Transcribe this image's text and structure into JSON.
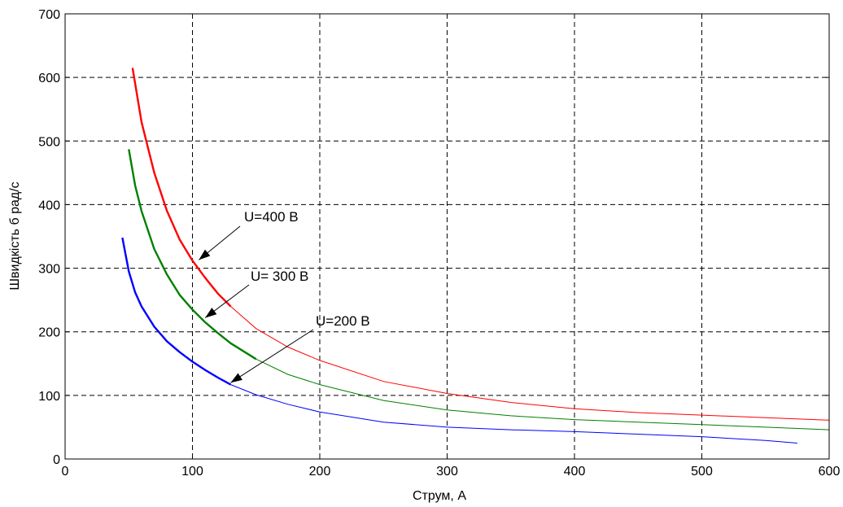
{
  "chart_data": {
    "type": "line",
    "xlabel": "Струм, А",
    "ylabel": "Швидкість б рад/с",
    "xlim": [
      0,
      600
    ],
    "ylim": [
      0,
      700
    ],
    "xticks": [
      "0",
      "100",
      "200",
      "300",
      "400",
      "500",
      "600"
    ],
    "yticks": [
      "0",
      "100",
      "200",
      "300",
      "400",
      "500",
      "600",
      "700"
    ],
    "grid": true,
    "series": [
      {
        "name": "U=400 В",
        "color": "#ff0000",
        "x": [
          53,
          60,
          70,
          80,
          90,
          100,
          110,
          120,
          130,
          150,
          175,
          200,
          250,
          300,
          350,
          400,
          450,
          500,
          550,
          600
        ],
        "y": [
          615,
          530,
          450,
          390,
          345,
          312,
          285,
          260,
          240,
          205,
          176,
          155,
          122,
          103,
          89,
          79,
          73,
          69,
          65,
          61
        ]
      },
      {
        "name": "U= 300 В",
        "color": "#008000",
        "x": [
          50,
          55,
          60,
          70,
          80,
          90,
          100,
          110,
          120,
          130,
          150,
          175,
          200,
          250,
          300,
          350,
          400,
          450,
          500,
          550,
          600
        ],
        "y": [
          487,
          430,
          390,
          330,
          290,
          258,
          235,
          215,
          198,
          182,
          157,
          133,
          117,
          92,
          77,
          68,
          62,
          58,
          54,
          50,
          46
        ]
      },
      {
        "name": "U=200 В",
        "color": "#0000ff",
        "x": [
          45,
          50,
          55,
          60,
          70,
          80,
          90,
          100,
          110,
          120,
          130,
          150,
          175,
          200,
          250,
          300,
          350,
          400,
          450,
          500,
          550,
          575
        ],
        "y": [
          348,
          295,
          262,
          240,
          208,
          185,
          168,
          153,
          140,
          128,
          117,
          101,
          86,
          74,
          58,
          50,
          46,
          43,
          39,
          35,
          29,
          25
        ]
      }
    ],
    "annotations": [
      {
        "text": "U=400 В",
        "series": "U=400 В",
        "point": [
          105,
          313
        ]
      },
      {
        "text": "U= 300 В",
        "series": "U= 300 В",
        "point": [
          110,
          222
        ]
      },
      {
        "text": "U=200 В",
        "series": "U=200 В",
        "point": [
          130,
          120
        ]
      }
    ]
  }
}
